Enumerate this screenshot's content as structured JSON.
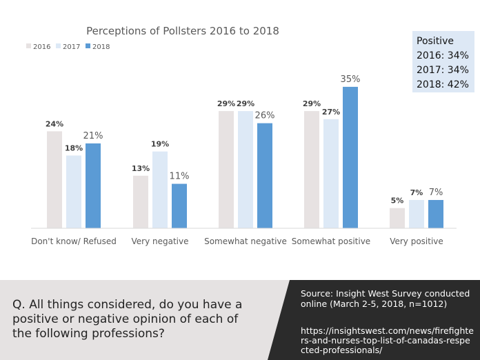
{
  "chart_data": {
    "type": "bar",
    "title": "Perceptions of Pollsters 2016 to 2018",
    "categories": [
      "Don't know/ Refused",
      "Very negative",
      "Somewhat negative",
      "Somewhat positive",
      "Very positive"
    ],
    "series": [
      {
        "name": "2016",
        "color": "#e7e2e2",
        "values": [
          24,
          13,
          29,
          29,
          5
        ],
        "labels": [
          "24%",
          "13%",
          "29%",
          "29%",
          "5%"
        ]
      },
      {
        "name": "2017",
        "color": "#dde9f6",
        "values": [
          18,
          19,
          29,
          27,
          7
        ],
        "labels": [
          "18%",
          "19%",
          "29%",
          "27%",
          "7%"
        ]
      },
      {
        "name": "2018",
        "color": "#5b9bd5",
        "values": [
          21,
          11,
          26,
          35,
          7
        ],
        "labels": [
          "21%",
          "11%",
          "26%",
          "35%",
          "7%"
        ]
      }
    ],
    "ylim": [
      0,
      35
    ],
    "legend_position": "top-left"
  },
  "positive_box": {
    "title": "Positive",
    "lines": [
      "2016: 34%",
      "2017: 34%",
      "2018: 42%"
    ]
  },
  "question": "Q. All things considered, do you have a positive or negative opinion of each of the following professions?",
  "source": {
    "text": "Source:  Insight West Survey conducted online (March 2-5, 2018, n=1012)",
    "url": "https://insightswest.com/news/firefighters-and-nurses-top-list-of-canadas-respected-professionals/"
  },
  "colors": {
    "panel_gray": "#e5e2e2",
    "panel_dark": "#2b2b2b",
    "accent_blue": "#5b9bd5"
  }
}
